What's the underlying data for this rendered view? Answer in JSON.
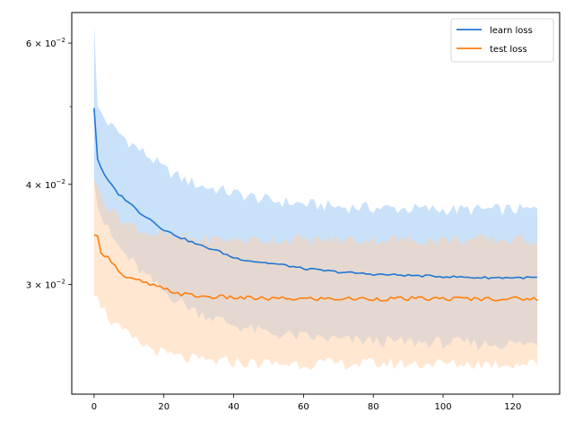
{
  "chart_data": {
    "type": "line",
    "title": "",
    "xlabel": "",
    "ylabel": "",
    "yscale": "log",
    "xlim": [
      -6.4,
      133.4
    ],
    "ylim": [
      0.0219,
      0.0655
    ],
    "grid": false,
    "legend_position": "top-right",
    "x_ticks": [
      {
        "value": 0,
        "label": "0"
      },
      {
        "value": 20,
        "label": "20"
      },
      {
        "value": 40,
        "label": "40"
      },
      {
        "value": 60,
        "label": "60"
      },
      {
        "value": 80,
        "label": "80"
      },
      {
        "value": 100,
        "label": "100"
      },
      {
        "value": 120,
        "label": "120"
      }
    ],
    "y_major_ticks": [
      {
        "value": 0.03,
        "mantissa": "3",
        "base": "10",
        "exponent": "−2"
      },
      {
        "value": 0.04,
        "mantissa": "4",
        "base": "10",
        "exponent": "−2"
      },
      {
        "value": 0.06,
        "mantissa": "6",
        "base": "10",
        "exponent": "−2"
      }
    ],
    "y_minor_ticks": [
      0.05
    ],
    "series": [
      {
        "name": "learn loss",
        "color": "#1f77d4",
        "band_color": "#a6cdf7",
        "x_end": 127,
        "mean_points": [
          [
            0,
            0.0498
          ],
          [
            1,
            0.043
          ],
          [
            3,
            0.041
          ],
          [
            5,
            0.0399
          ],
          [
            7,
            0.0389
          ],
          [
            10,
            0.038
          ],
          [
            13,
            0.0369
          ],
          [
            16,
            0.0362
          ],
          [
            20,
            0.0351
          ],
          [
            25,
            0.0343
          ],
          [
            30,
            0.0336
          ],
          [
            35,
            0.0331
          ],
          [
            40,
            0.0324
          ],
          [
            45,
            0.0321
          ],
          [
            50,
            0.0319
          ],
          [
            55,
            0.0317
          ],
          [
            60,
            0.0314
          ],
          [
            70,
            0.0311
          ],
          [
            80,
            0.0309
          ],
          [
            90,
            0.0308
          ],
          [
            100,
            0.0307
          ],
          [
            110,
            0.0306
          ],
          [
            120,
            0.0306
          ],
          [
            127,
            0.0306
          ]
        ],
        "upper_points": [
          [
            0,
            0.0635
          ],
          [
            1,
            0.05
          ],
          [
            3,
            0.0483
          ],
          [
            5,
            0.0472
          ],
          [
            8,
            0.046
          ],
          [
            12,
            0.0445
          ],
          [
            16,
            0.0432
          ],
          [
            20,
            0.0418
          ],
          [
            25,
            0.0407
          ],
          [
            30,
            0.0399
          ],
          [
            40,
            0.039
          ],
          [
            50,
            0.0382
          ],
          [
            60,
            0.0378
          ],
          [
            70,
            0.0375
          ],
          [
            80,
            0.0374
          ],
          [
            90,
            0.0373
          ],
          [
            100,
            0.0372
          ],
          [
            110,
            0.0372
          ],
          [
            120,
            0.0372
          ],
          [
            127,
            0.0372
          ]
        ],
        "lower_points": [
          [
            0,
            0.0405
          ],
          [
            1,
            0.0375
          ],
          [
            3,
            0.0358
          ],
          [
            5,
            0.0344
          ],
          [
            8,
            0.033
          ],
          [
            12,
            0.0316
          ],
          [
            16,
            0.0304
          ],
          [
            20,
            0.0294
          ],
          [
            25,
            0.0285
          ],
          [
            30,
            0.0277
          ],
          [
            40,
            0.0267
          ],
          [
            50,
            0.0261
          ],
          [
            60,
            0.0258
          ],
          [
            70,
            0.0256
          ],
          [
            80,
            0.0255
          ],
          [
            90,
            0.0254
          ],
          [
            100,
            0.0254
          ],
          [
            110,
            0.0253
          ],
          [
            120,
            0.0253
          ],
          [
            127,
            0.0253
          ]
        ]
      },
      {
        "name": "test loss",
        "color": "#ff7f0e",
        "band_color": "#ffcfa6",
        "x_end": 127,
        "mean_points": [
          [
            0,
            0.0346
          ],
          [
            1,
            0.0345
          ],
          [
            2,
            0.033
          ],
          [
            4,
            0.0324
          ],
          [
            6,
            0.0318
          ],
          [
            8,
            0.0308
          ],
          [
            10,
            0.0305
          ],
          [
            13,
            0.0303
          ],
          [
            16,
            0.03
          ],
          [
            20,
            0.0296
          ],
          [
            25,
            0.0292
          ],
          [
            30,
            0.029
          ],
          [
            40,
            0.0289
          ],
          [
            50,
            0.0288
          ],
          [
            60,
            0.0288
          ],
          [
            70,
            0.0288
          ],
          [
            80,
            0.0288
          ],
          [
            90,
            0.0288
          ],
          [
            100,
            0.0288
          ],
          [
            110,
            0.0288
          ],
          [
            120,
            0.0288
          ],
          [
            127,
            0.0288
          ]
        ],
        "upper_points": [
          [
            0,
            0.0405
          ],
          [
            1,
            0.0398
          ],
          [
            3,
            0.0382
          ],
          [
            5,
            0.0372
          ],
          [
            8,
            0.0361
          ],
          [
            12,
            0.0353
          ],
          [
            16,
            0.0348
          ],
          [
            20,
            0.0345
          ],
          [
            25,
            0.0343
          ],
          [
            30,
            0.0342
          ],
          [
            40,
            0.0341
          ],
          [
            50,
            0.0341
          ],
          [
            60,
            0.0341
          ],
          [
            70,
            0.0341
          ],
          [
            80,
            0.0341
          ],
          [
            90,
            0.0341
          ],
          [
            100,
            0.0341
          ],
          [
            110,
            0.0341
          ],
          [
            120,
            0.0341
          ],
          [
            127,
            0.0341
          ]
        ],
        "lower_points": [
          [
            0,
            0.029
          ],
          [
            1,
            0.029
          ],
          [
            3,
            0.0278
          ],
          [
            5,
            0.027
          ],
          [
            8,
            0.0262
          ],
          [
            12,
            0.0255
          ],
          [
            16,
            0.025
          ],
          [
            20,
            0.0246
          ],
          [
            25,
            0.0243
          ],
          [
            30,
            0.0241
          ],
          [
            40,
            0.024
          ],
          [
            50,
            0.0239
          ],
          [
            60,
            0.0239
          ],
          [
            70,
            0.0239
          ],
          [
            80,
            0.0239
          ],
          [
            90,
            0.0239
          ],
          [
            100,
            0.0239
          ],
          [
            110,
            0.0239
          ],
          [
            120,
            0.0239
          ],
          [
            127,
            0.0239
          ]
        ]
      }
    ]
  }
}
